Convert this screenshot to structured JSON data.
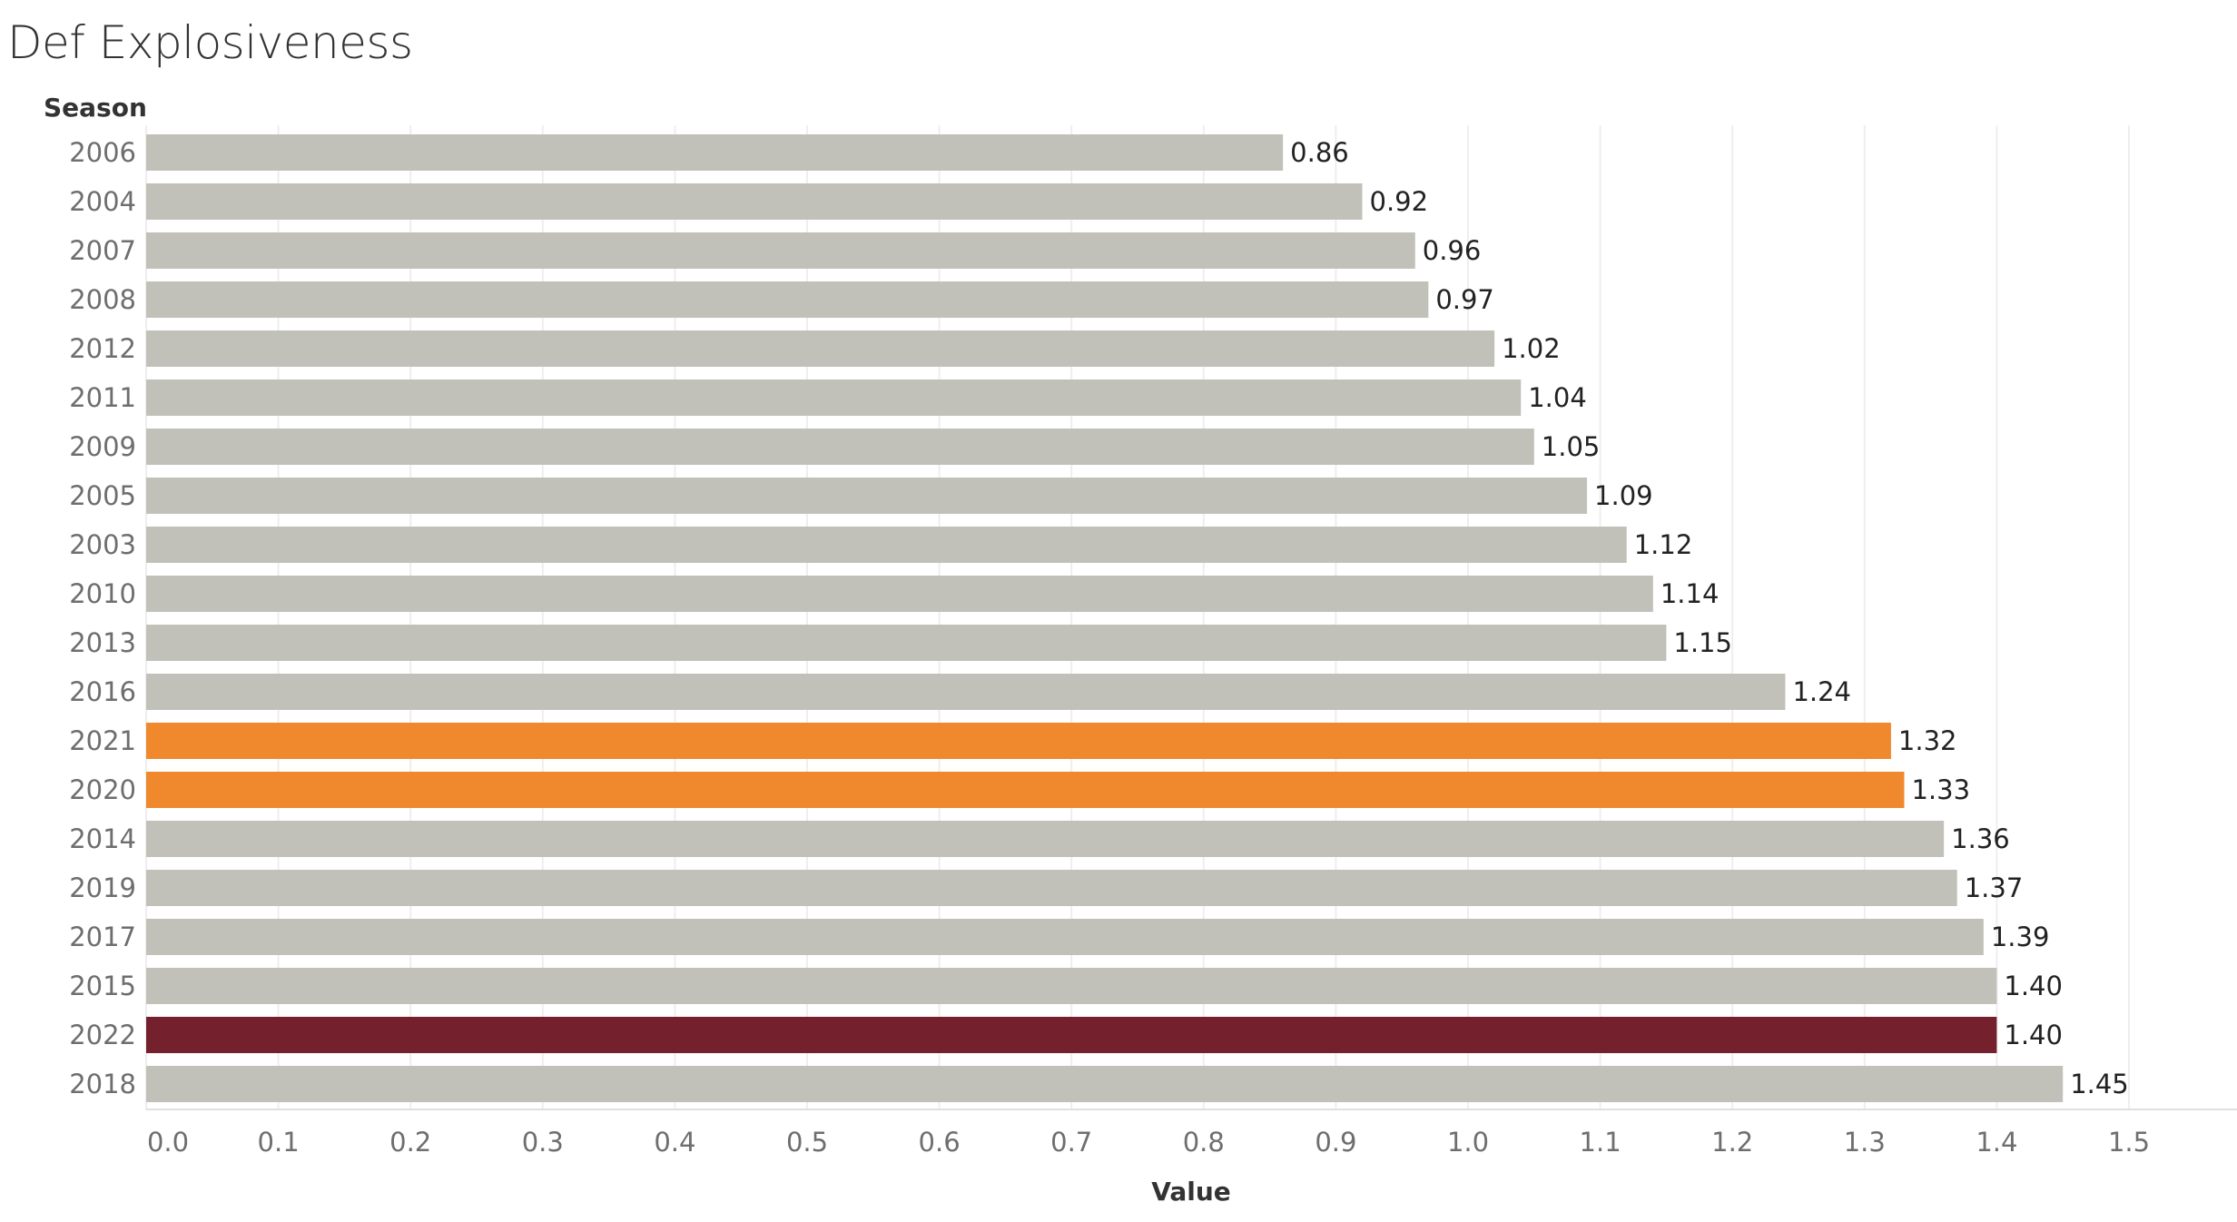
{
  "chart_data": {
    "type": "bar",
    "orientation": "horizontal",
    "title": "Def Explosiveness",
    "ylabel": "Season",
    "xlabel": "Value",
    "xlim": [
      0,
      1.5
    ],
    "x_ticks": [
      "0.0",
      "0.1",
      "0.2",
      "0.3",
      "0.4",
      "0.5",
      "0.6",
      "0.7",
      "0.8",
      "0.9",
      "1.0",
      "1.1",
      "1.2",
      "1.3",
      "1.4",
      "1.5"
    ],
    "grid": "vertical",
    "categories": [
      "2006",
      "2004",
      "2007",
      "2008",
      "2012",
      "2011",
      "2009",
      "2005",
      "2003",
      "2010",
      "2013",
      "2016",
      "2021",
      "2020",
      "2014",
      "2019",
      "2017",
      "2015",
      "2022",
      "2018"
    ],
    "values": [
      0.86,
      0.92,
      0.96,
      0.97,
      1.02,
      1.04,
      1.05,
      1.09,
      1.12,
      1.14,
      1.15,
      1.24,
      1.32,
      1.33,
      1.36,
      1.37,
      1.39,
      1.4,
      1.4,
      1.45
    ],
    "value_labels": [
      "0.86",
      "0.92",
      "0.96",
      "0.97",
      "1.02",
      "1.04",
      "1.05",
      "1.09",
      "1.12",
      "1.14",
      "1.15",
      "1.24",
      "1.32",
      "1.33",
      "1.36",
      "1.37",
      "1.39",
      "1.40",
      "1.40",
      "1.45"
    ],
    "colors": {
      "default": "#c2c1b9",
      "2021": "#f0892e",
      "2020": "#f0892e",
      "2022": "#74202d"
    }
  }
}
